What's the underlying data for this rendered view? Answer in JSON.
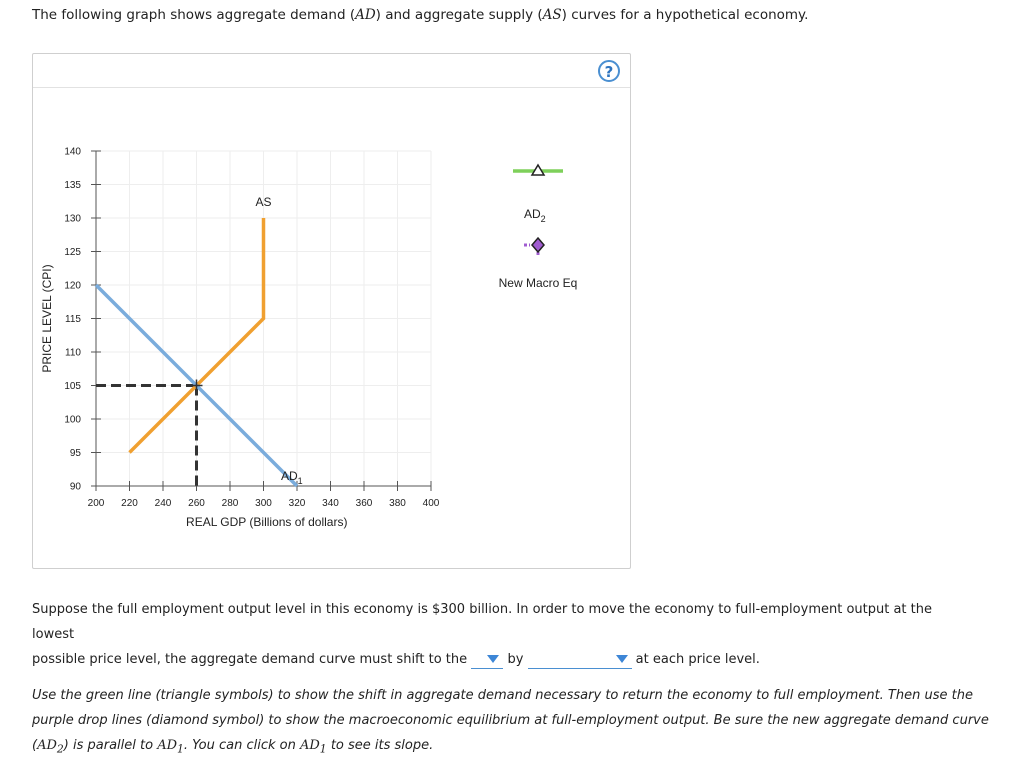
{
  "intro": {
    "before": "The following graph shows aggregate demand (",
    "ad": "AD",
    "middle": ") and aggregate supply (",
    "as": "AS",
    "after": ") curves for a hypothetical economy."
  },
  "help_label": "?",
  "palette": {
    "ad2_label": "AD",
    "ad2_sub": "2",
    "eq_label": "New Macro Eq",
    "green": "#7ed05a",
    "purple": "#a05cd0"
  },
  "chart_data": {
    "type": "line",
    "xlabel": "REAL GDP (Billions of dollars)",
    "ylabel": "PRICE LEVEL (CPI)",
    "xlim": [
      200,
      400
    ],
    "ylim": [
      90,
      140
    ],
    "xticks": [
      200,
      220,
      240,
      260,
      280,
      300,
      320,
      340,
      360,
      380,
      400
    ],
    "yticks": [
      90,
      95,
      100,
      105,
      110,
      115,
      120,
      125,
      130,
      135,
      140
    ],
    "grid": true,
    "series": [
      {
        "name": "AS",
        "color": "#f0a030",
        "points": [
          [
            220,
            95
          ],
          [
            300,
            115
          ],
          [
            300,
            130
          ]
        ]
      },
      {
        "name": "AD",
        "sub": "1",
        "color": "#7aacdc",
        "points": [
          [
            200,
            120
          ],
          [
            320,
            90
          ]
        ]
      }
    ],
    "equilibrium": {
      "x": 260,
      "y": 105,
      "color": "#333333"
    }
  },
  "question": {
    "line1": "Suppose the full employment output level in this economy is $300 billion. In order to move the economy to full-employment output at the lowest",
    "line2_start": "possible price level, the aggregate demand curve must shift to the",
    "by": "by",
    "end": "at each price level."
  },
  "instructions": {
    "part1": "Use the green line (triangle symbols) to show the shift in aggregate demand necessary to return the economy to full employment. Then use the purple drop lines (diamond symbol) to show the macroeconomic equilibrium at full-employment output. Be sure the new aggregate demand curve (",
    "ad2": "AD",
    "ad2_sub": "2",
    "part2": ") is parallel to ",
    "ad1": "AD",
    "ad1_sub": "1",
    "part3": ". You can click on ",
    "part4": " to see its slope."
  }
}
